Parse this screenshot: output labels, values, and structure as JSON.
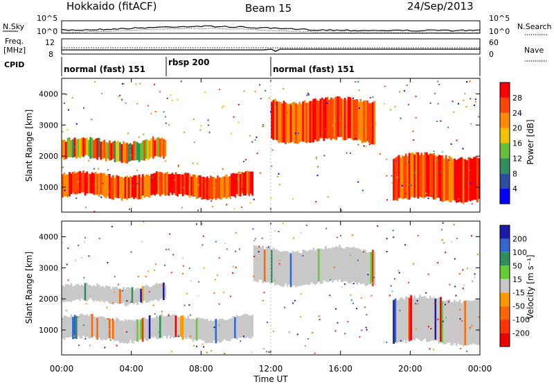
{
  "header": {
    "site": "Hokkaido (fitACF)",
    "beam": "Beam 15",
    "date": "24/Sep/2013"
  },
  "status_panel": {
    "left_label_1": "N.Sky",
    "left_ticks_1": [
      "10^5",
      "10^0"
    ],
    "right_ticks_1": [
      "10^5",
      "10^0"
    ],
    "right_label_1": "N.Search",
    "left_label_2a": "Freq.",
    "left_label_2b": "[MHz]",
    "left_ticks_2": [
      "12",
      "8"
    ],
    "right_ticks_2": [
      "60",
      "0"
    ],
    "right_label_2": "Nave",
    "cpid_label": "CPID",
    "cpid_segments": [
      {
        "label": "normal (fast) 151",
        "start_hour": 0
      },
      {
        "label": "rbsp 200",
        "start_hour": 6
      },
      {
        "label": "normal (fast) 151",
        "start_hour": 12
      }
    ]
  },
  "chart_data": [
    {
      "type": "heatmap",
      "quantity": "power",
      "ylabel": "Slant Range [km]",
      "ylim": [
        200,
        4500
      ],
      "yticks": [
        "1000",
        "2000",
        "3000",
        "4000"
      ],
      "xlim_hours": [
        0,
        24
      ],
      "colorbar": {
        "label": "Power [dB]",
        "ticks": [
          "4",
          "8",
          "12",
          "16",
          "20",
          "24",
          "28"
        ],
        "colors": [
          "#0000ff",
          "#2b4f9e",
          "#2f8f5c",
          "#66bf3a",
          "#f2c200",
          "#ff8c00",
          "#ff4500",
          "#ff0000"
        ]
      },
      "bands": [
        {
          "range_km": [
            700,
            1400
          ],
          "start_hour": 0,
          "end_hour": 11,
          "level": "high"
        },
        {
          "range_km": [
            1900,
            2500
          ],
          "start_hour": 0,
          "end_hour": 6,
          "level": "mixed"
        },
        {
          "range_km": [
            2500,
            3800
          ],
          "start_hour": 12,
          "end_hour": 18,
          "level": "high"
        },
        {
          "range_km": [
            600,
            2000
          ],
          "start_hour": 19,
          "end_hour": 24,
          "level": "high"
        }
      ]
    },
    {
      "type": "heatmap",
      "quantity": "velocity",
      "ylabel": "Slant Range [km]",
      "ylim": [
        200,
        4500
      ],
      "yticks": [
        "1000",
        "2000",
        "3000",
        "4000"
      ],
      "xlim_hours": [
        0,
        24
      ],
      "colorbar": {
        "label": "Velocity [m s⁻¹]",
        "ticks": [
          "200",
          "100",
          "50",
          "15",
          "-15",
          "-50",
          "-100",
          "-200"
        ],
        "colors": [
          "#1a1aa8",
          "#3366cc",
          "#2f8f5c",
          "#66cc33",
          "#c8c8c8",
          "#ff9900",
          "#ff6600",
          "#ff3300",
          "#ee0000"
        ]
      },
      "bands": [
        {
          "range_km": [
            700,
            1400
          ],
          "start_hour": 0,
          "end_hour": 11,
          "level": "ground"
        },
        {
          "range_km": [
            1900,
            2400
          ],
          "start_hour": 0,
          "end_hour": 6,
          "level": "ground"
        },
        {
          "range_km": [
            2500,
            3600
          ],
          "start_hour": 11,
          "end_hour": 18,
          "level": "ground"
        },
        {
          "range_km": [
            600,
            2000
          ],
          "start_hour": 19,
          "end_hour": 24,
          "level": "ground"
        }
      ]
    }
  ],
  "x_axis": {
    "label": "Time UT",
    "ticks": [
      "00:00",
      "04:00",
      "08:00",
      "12:00",
      "16:00",
      "20:00",
      "00:00"
    ]
  }
}
